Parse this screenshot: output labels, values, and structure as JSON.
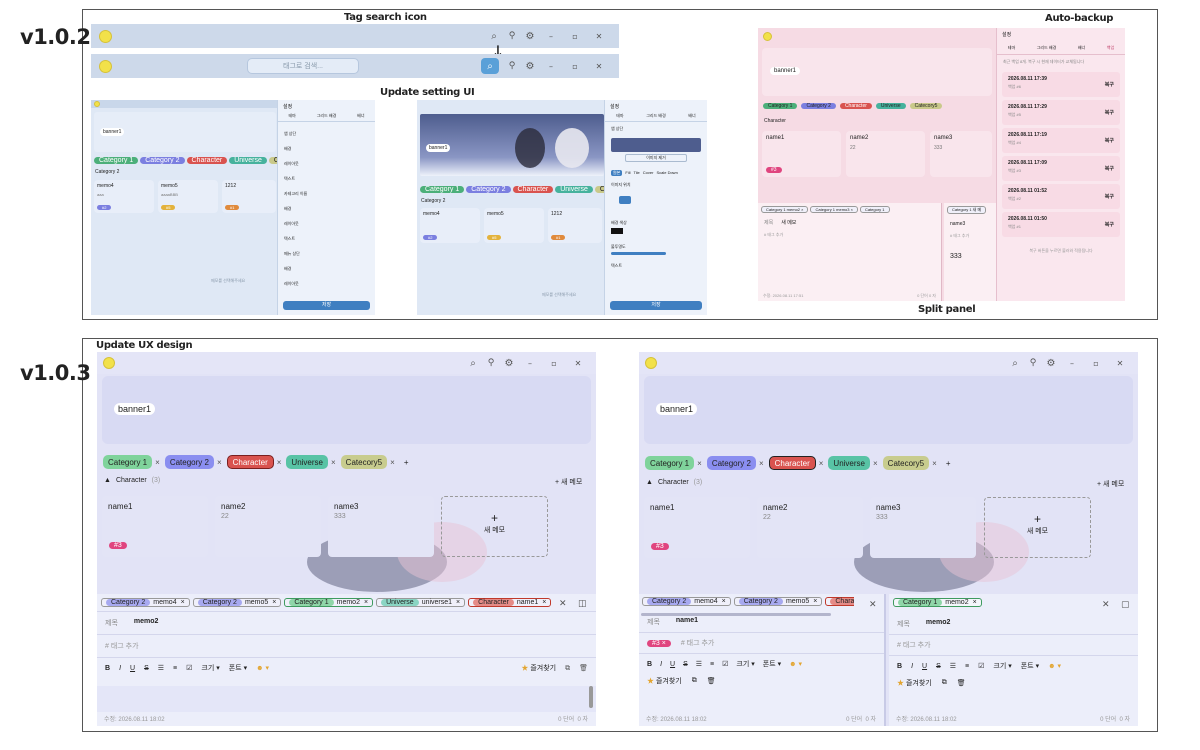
{
  "versions": {
    "v102": "v1.0.2",
    "v103": "v1.0.3"
  },
  "annotations": {
    "tag_search": "Tag search icon",
    "auto_backup": "Auto-backup",
    "setting_ui": "Update setting UI",
    "split_panel": "Split panel",
    "ux_design": "Update UX design"
  },
  "window": {
    "minimize": "–",
    "maximize": "▫",
    "close": "✕"
  },
  "search": {
    "placeholder": "태그로 검색..."
  },
  "banner": {
    "label": "banner1"
  },
  "categories": [
    {
      "label": "Category 1",
      "color": "#4caf7a"
    },
    {
      "label": "Category 2",
      "color": "#7b7fe0"
    },
    {
      "label": "Character",
      "color": "#d9534f"
    },
    {
      "label": "Universe",
      "color": "#46b29d"
    },
    {
      "label": "Catecory5",
      "color": "#c9c98a"
    }
  ],
  "add_symbol": "+",
  "section": {
    "title": "Character",
    "count": "(3)",
    "collapse_icon": "▲",
    "new_memo": "+ 새 메모",
    "small_title": "Category 2"
  },
  "memos": [
    {
      "title": "name1",
      "body": "",
      "tag": "#3"
    },
    {
      "title": "name2",
      "body": "22"
    },
    {
      "title": "name3",
      "body": "333"
    }
  ],
  "new_memo_card": {
    "plus": "+",
    "label": "새 메모"
  },
  "old_memos": [
    {
      "title": "memo4",
      "body": "aaa",
      "tag": "#2"
    },
    {
      "title": "memo5",
      "body": "aaaaBBB",
      "tag": "#5"
    },
    {
      "title": "1212",
      "body": "",
      "tag": "#1"
    }
  ],
  "editor_tabs": [
    {
      "tag": "Category 2",
      "name": "memo4",
      "color": "#a7a9f0"
    },
    {
      "tag": "Category 2",
      "name": "memo5",
      "color": "#a7a9f0"
    },
    {
      "tag": "Category 1",
      "name": "memo2",
      "color": "#8fd6a8"
    },
    {
      "tag": "Universe",
      "name": "universe1",
      "color": "#8ad5c3"
    },
    {
      "tag": "Character",
      "name": "name1",
      "color": "#e58b87"
    }
  ],
  "split_left_tabs": [
    {
      "tag": "Category 2",
      "name": "memo4"
    },
    {
      "tag": "Category 2",
      "name": "memo5"
    },
    {
      "tag": "Characte",
      "name": ""
    }
  ],
  "split_right_tab": {
    "tag": "Category 1",
    "name": "memo2"
  },
  "editor": {
    "title_label": "제목",
    "title_value": "memo2",
    "tag_placeholder": "# 태그 추가",
    "toolbar": {
      "bold": "B",
      "italic": "I",
      "underline": "U",
      "strike": "S",
      "bullet": "☰",
      "number": "≡",
      "check": "☑",
      "size": "크기",
      "font": "폰트",
      "emoji": "☻"
    },
    "favorite": "즐겨찾기",
    "footer_modified": "수정: 2026.08.11 18:02",
    "footer_count": "0 단어",
    "footer_chars": "0 자"
  },
  "split_left_editor": {
    "title_value": "name1",
    "tag": "#3 ×",
    "tag_placeholder": "# 태그 추가"
  },
  "old_editor": {
    "title_label": "제목",
    "title_value": "새 메모",
    "tag_placeholder": "# 태그 추가",
    "content": "333",
    "footer": "수정: 2026.08.11 17:51",
    "count": "0 단어",
    "chars": "0 자"
  },
  "old_tabs": [
    "Category 1  memo2 ×",
    "Category 1  memo3 ×",
    "Category 1"
  ],
  "old_tabs_right": "Category 1  새 메",
  "old_right_editor": {
    "title_value": "name3",
    "tag": "# 태그 추가"
  },
  "empty_hint": "메모를 선택해주세요",
  "settings": {
    "title": "설정",
    "arrow": "›",
    "tabs": [
      "테마",
      "그리드 배경",
      "배너",
      "백업"
    ],
    "old_items": [
      "앱 상단",
      "배경",
      "레이아웃",
      "텍스트",
      "카테고리 이름",
      "배경",
      "레이아웃",
      "텍스트",
      "메뉴 상단",
      "배경",
      "레이아웃",
      "텍스트"
    ],
    "save": "저장",
    "image_remove": "이미지 제거",
    "fit_modes": [
      "원본",
      "Fill",
      "Tile",
      "Cover",
      "Scale Down"
    ],
    "position": "이미지 위치",
    "bg_color": "배경 색상",
    "opacity": "불투명도",
    "text_label": "텍스트"
  },
  "backup": {
    "title": "설정",
    "tabs": [
      "테마",
      "그리드 배경",
      "배너",
      "백업"
    ],
    "desc": "최근 백업 8개. 복구 시 현재 데이터가 교체됩니다",
    "items": [
      {
        "time": "2026.08.11 17:39",
        "name": "백업 #6"
      },
      {
        "time": "2026.08.11 17:29",
        "name": "백업 #5"
      },
      {
        "time": "2026.08.11 17:19",
        "name": "백업 #4"
      },
      {
        "time": "2026.08.11 17:09",
        "name": "백업 #3"
      },
      {
        "time": "2026.08.11 01:52",
        "name": "백업 #2"
      },
      {
        "time": "2026.08.11 01:50",
        "name": "백업 #1"
      }
    ],
    "restore": "복구",
    "footer": "복구 버튼을 누르면 불러와 적용됩니다"
  },
  "colors": {
    "accent": "#5aa0d8",
    "pink_bg": "#f5d9e2",
    "lavender": "#d3d6f3"
  }
}
